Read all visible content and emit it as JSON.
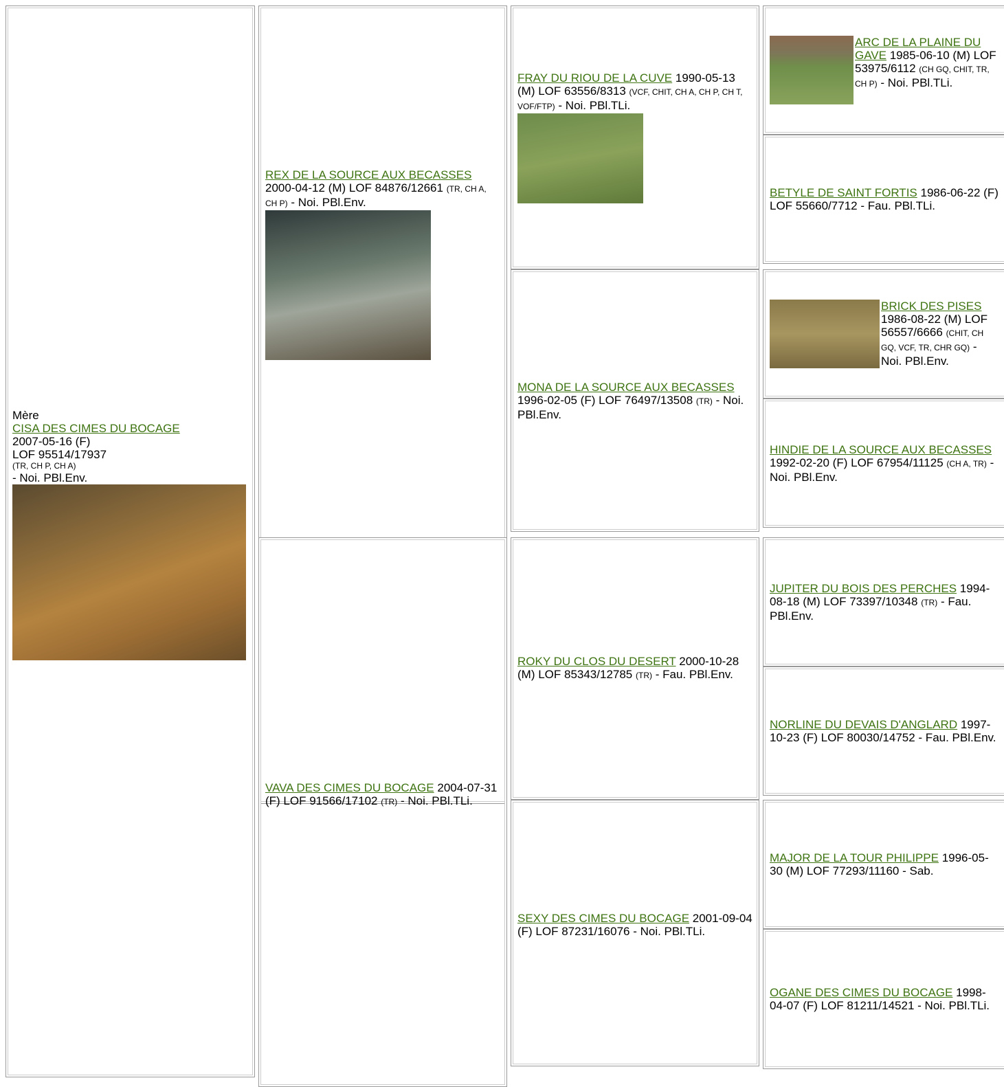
{
  "subject": {
    "label": "Mère",
    "name": "CISA DES CIMES DU BOCAGE",
    "date": "2007-05-16 (F)",
    "lof": "LOF 95514/17937",
    "titles": "(TR, CH P, CH A)",
    "coat": "- Noi. PBl.Env."
  },
  "ancestors": [
    {
      "name": "REX DE LA SOURCE AUX BECASSES",
      "info": "2000-04-12 (M) LOF 84876/12661",
      "titles": "(TR, CH A, CH P)",
      "coat": "- Noi. PBl.Env."
    },
    {
      "name": "VAVA DES CIMES DU BOCAGE",
      "info": "2004-07-31 (F) LOF 91566/17102",
      "titles": "(TR)",
      "coat": "- Noi. PBl.TLi."
    },
    {
      "name": "FRAY DU RIOU DE LA CUVE",
      "info": "1990-05-13 (M) LOF 63556/8313",
      "titles": "(VCF, CHIT, CH A, CH P, CH T, VOF/FTP)",
      "coat": "- Noi. PBl.TLi."
    },
    {
      "name": "MONA DE LA SOURCE AUX BECASSES",
      "info": "1996-02-05 (F) LOF 76497/13508",
      "titles": "(TR)",
      "coat": "- Noi. PBl.Env."
    },
    {
      "name": "ROKY DU CLOS DU DESERT",
      "info": "2000-10-28 (M) LOF 85343/12785",
      "titles": "(TR)",
      "coat": "- Fau. PBl.Env."
    },
    {
      "name": "SEXY DES CIMES DU BOCAGE",
      "info": "2001-09-04 (F) LOF 87231/16076",
      "coat": "- Noi. PBl.TLi."
    },
    {
      "name": "ARC DE LA PLAINE DU GAVE",
      "info": "1985-06-10 (M) LOF 53975/6112",
      "titles": "(CH GQ, CHIT, TR, CH P)",
      "coat": "- Noi. PBl.TLi."
    },
    {
      "name": "BETYLE DE SAINT FORTIS",
      "info": "1986-06-22 (F) LOF 55660/7712",
      "coat": "- Fau. PBl.TLi."
    },
    {
      "name": "BRICK DES PISES",
      "info": "1986-08-22 (M) LOF 56557/6666",
      "titles": "(CHIT, CH GQ, VCF, TR, CHR GQ)",
      "coat": "- Noi. PBl.Env."
    },
    {
      "name": "HINDIE DE LA SOURCE AUX BECASSES",
      "info": "1992-02-20 (F) LOF 67954/11125",
      "titles": "(CH A, TR)",
      "coat": "- Noi. PBl.Env."
    },
    {
      "name": "JUPITER DU BOIS DES PERCHES",
      "info": "1994-08-18 (M) LOF 73397/10348",
      "titles": "(TR)",
      "coat": "- Fau. PBl.Env."
    },
    {
      "name": "NORLINE DU DEVAIS D'ANGLARD",
      "info": "1997-10-23 (F) LOF 80030/14752",
      "coat": "- Fau. PBl.Env."
    },
    {
      "name": "MAJOR DE LA TOUR PHILIPPE",
      "info": "1996-05-30 (M) LOF 77293/11160",
      "coat": "- Sab."
    },
    {
      "name": "OGANE DES CIMES DU BOCAGE",
      "info": "1998-04-07 (F) LOF 81211/14521",
      "coat": "- Noi. PBl.TLi."
    }
  ]
}
